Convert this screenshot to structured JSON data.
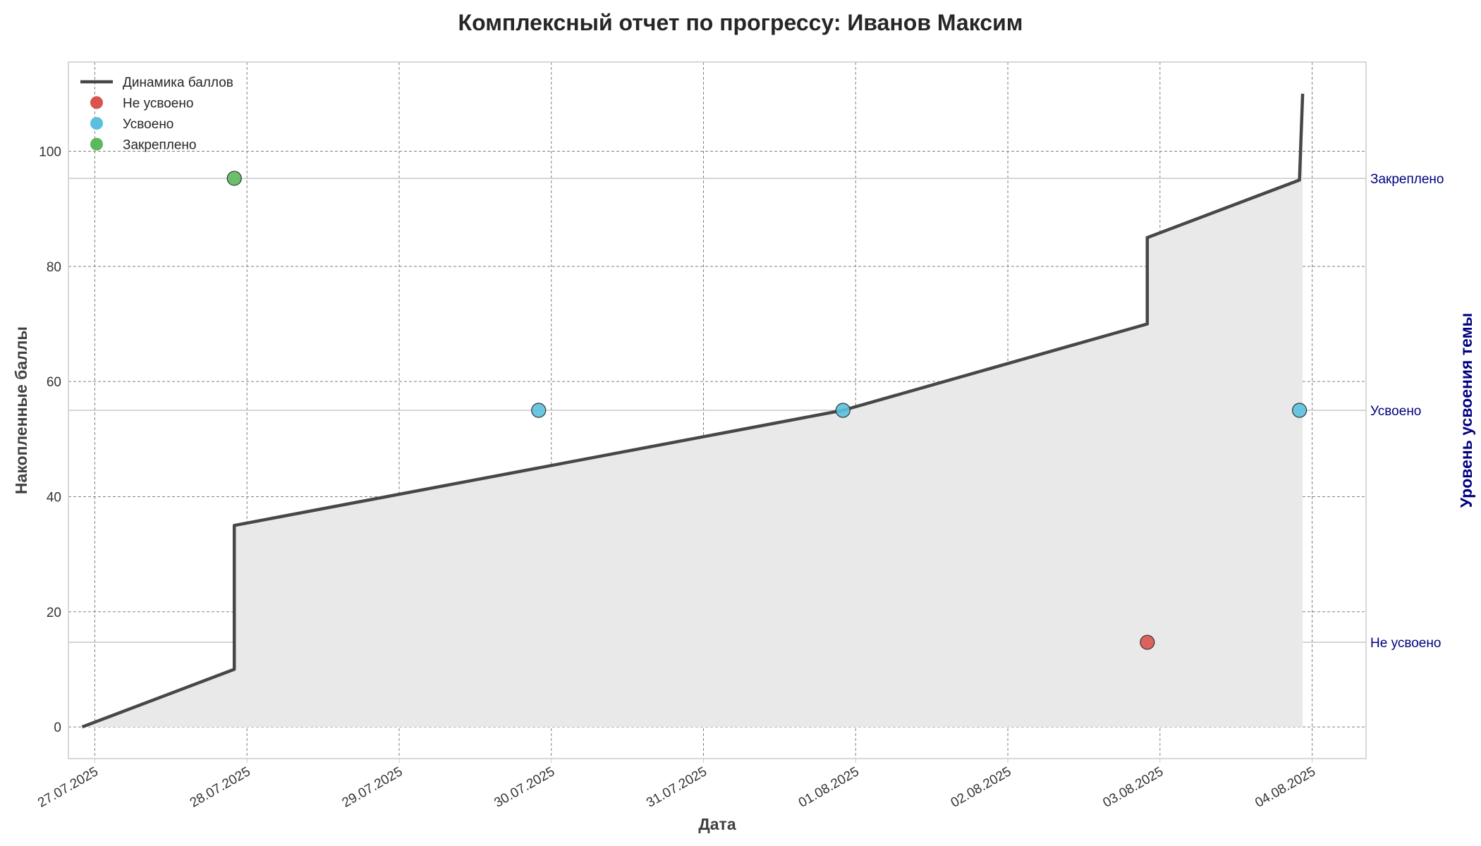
{
  "chart_data": {
    "type": "line",
    "title": "Комплексный отчет по прогрессу: Иванов Максим",
    "xlabel": "Дата",
    "ylabel": "Накопленные баллы",
    "y2label": "Уровень усвоения темы",
    "x_tick_labels": [
      "27.07.2025",
      "28.07.2025",
      "29.07.2025",
      "30.07.2025",
      "31.07.2025",
      "01.08.2025",
      "02.08.2025",
      "03.08.2025",
      "04.08.2025"
    ],
    "xlim": [
      "2025-07-26T19:50",
      "2025-08-04T08:30"
    ],
    "ylim": [
      -5.5,
      115.5
    ],
    "y_ticks": [
      0,
      20,
      40,
      60,
      80,
      100
    ],
    "grid": true,
    "legend_position": "top-left",
    "series": [
      {
        "name": "Динамика баллов",
        "kind": "line",
        "color": "#474747",
        "fill": "#e9e9e9",
        "points": [
          {
            "x": "2025-07-26T22:00",
            "y": 0
          },
          {
            "x": "2025-07-27T22:00",
            "y": 10
          },
          {
            "x": "2025-07-27T22:00",
            "y": 35
          },
          {
            "x": "2025-07-31T22:00",
            "y": 55
          },
          {
            "x": "2025-08-02T22:00",
            "y": 70
          },
          {
            "x": "2025-08-02T22:00",
            "y": 85
          },
          {
            "x": "2025-08-03T22:00",
            "y": 95
          },
          {
            "x": "2025-08-03T22:30",
            "y": 110
          }
        ]
      }
    ],
    "mastery_levels": [
      {
        "label": "Не усвоено",
        "y": 14.7
      },
      {
        "label": "Усвоено",
        "y": 55
      },
      {
        "label": "Закреплено",
        "y": 95.3
      }
    ],
    "mastery_points": [
      {
        "x": "2025-07-27T22:00",
        "level": "Закреплено"
      },
      {
        "x": "2025-07-29T22:00",
        "level": "Усвоено"
      },
      {
        "x": "2025-07-31T22:00",
        "level": "Усвоено"
      },
      {
        "x": "2025-08-02T22:00",
        "level": "Не усвоено"
      },
      {
        "x": "2025-08-03T22:00",
        "level": "Усвоено"
      }
    ],
    "legend": [
      {
        "label": "Динамика баллов",
        "kind": "line",
        "color": "#474747"
      },
      {
        "label": "Не усвоено",
        "kind": "marker",
        "color": "#d9534f"
      },
      {
        "label": "Усвоено",
        "kind": "marker",
        "color": "#5bc0de"
      },
      {
        "label": "Закреплено",
        "kind": "marker",
        "color": "#5cb85c"
      }
    ]
  }
}
